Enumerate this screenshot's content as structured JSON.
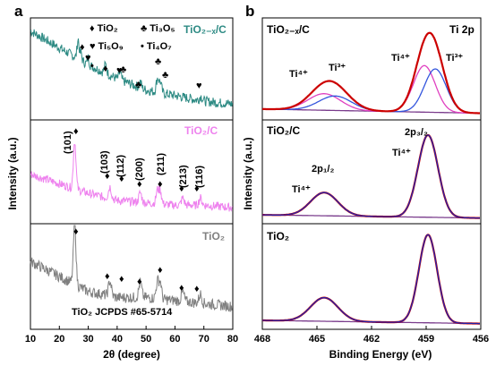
{
  "panel_a": {
    "letter": "a",
    "xlabel": "2θ (degree)",
    "ylabel": "Intensity (a.u.)",
    "xticks": [
      "10",
      "20",
      "30",
      "40",
      "50",
      "60",
      "70",
      "80"
    ],
    "legend": [
      {
        "symbol": "♦",
        "text": "TiO₂"
      },
      {
        "symbol": "♣",
        "text": "Ti₃O₅"
      },
      {
        "symbol": "♥",
        "text": "Ti₅O₉"
      },
      {
        "symbol": "•",
        "text": "Ti₄O₇"
      }
    ],
    "samples": [
      {
        "label": "TiO₂₋ₓ/C",
        "color": "#2e8b84"
      },
      {
        "label": "TiO₂/C",
        "color": "#ee82ee"
      },
      {
        "label": "TiO₂",
        "color": "#808080"
      }
    ],
    "reference": "TiO₂ JCPDS #65-5714",
    "miller": [
      "(101)",
      "(103)",
      "(112)",
      "(200)",
      "(211)",
      "(213)",
      "(116)"
    ]
  },
  "panel_b": {
    "letter": "b",
    "xlabel": "Binding Energy (eV)",
    "ylabel": "Intensity (a.u.)",
    "xticks": [
      "468",
      "465",
      "462",
      "459",
      "456"
    ],
    "title_right": "Ti 2p",
    "samples": [
      {
        "label": "TiO₂₋ₓ/C"
      },
      {
        "label": "TiO₂/C"
      },
      {
        "label": "TiO₂"
      }
    ],
    "labels": {
      "ti4": "Ti⁴⁺",
      "ti3": "Ti³⁺",
      "p12": "2p₁/₂",
      "p32": "2p₃/₂"
    },
    "colors": {
      "raw": "#cc0000",
      "fit": "#8b0000",
      "ti4": "#e040c0",
      "ti3": "#3355dd",
      "bg": "#7a3c8c",
      "ti4_single": "#2222aa"
    }
  },
  "chart_data": [
    {
      "type": "line",
      "title": "",
      "xlabel": "2θ (degree)",
      "ylabel": "Intensity (a.u.)",
      "xlim": [
        10,
        80
      ],
      "series": [
        {
          "name": "TiO₂₋ₓ/C",
          "x": [
            10,
            15,
            20,
            25,
            26.5,
            30,
            36,
            38,
            41,
            45,
            48,
            54,
            55,
            62,
            70,
            80
          ],
          "values": [
            0.92,
            0.85,
            0.78,
            0.72,
            0.82,
            0.68,
            0.6,
            0.58,
            0.57,
            0.5,
            0.48,
            0.56,
            0.52,
            0.45,
            0.42,
            0.4
          ]
        },
        {
          "name": "TiO₂/C",
          "x": [
            10,
            20,
            24,
            25.3,
            27,
            30,
            36,
            38,
            42,
            48,
            54,
            55,
            62,
            64,
            68,
            80
          ],
          "values": [
            0.58,
            0.54,
            0.52,
            0.68,
            0.55,
            0.5,
            0.48,
            0.47,
            0.46,
            0.47,
            0.48,
            0.47,
            0.45,
            0.46,
            0.45,
            0.44
          ]
        },
        {
          "name": "TiO₂",
          "x": [
            10,
            20,
            24,
            25.3,
            27,
            30,
            36,
            38,
            42,
            48,
            54,
            55,
            62,
            64,
            68,
            80
          ],
          "values": [
            0.3,
            0.25,
            0.22,
            0.38,
            0.24,
            0.19,
            0.2,
            0.18,
            0.17,
            0.19,
            0.2,
            0.18,
            0.16,
            0.17,
            0.16,
            0.15
          ]
        }
      ]
    },
    {
      "type": "line",
      "title": "",
      "xlabel": "Binding Energy (eV)",
      "ylabel": "Intensity (a.u.)",
      "xlim": [
        468,
        456
      ],
      "peaks": {
        "TiO₂₋ₓ/C": {
          "ti4_2p12": 464.6,
          "ti3_2p12": 464.0,
          "ti4_2p32": 459.1,
          "ti3_2p32": 458.5
        },
        "TiO₂/C": {
          "ti4_2p12": 464.6,
          "ti4_2p32": 458.9
        },
        "TiO₂": {
          "ti4_2p12": 464.6,
          "ti4_2p32": 458.9
        }
      }
    }
  ]
}
